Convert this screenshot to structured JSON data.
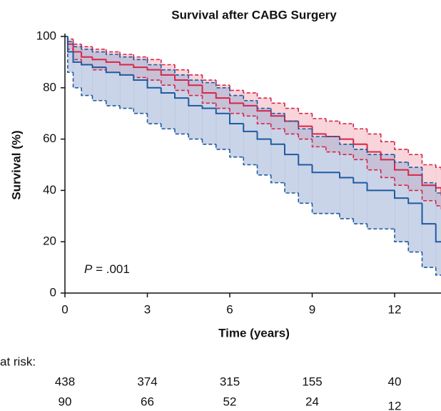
{
  "chart_data": {
    "type": "survival",
    "title": "Survival after CABG Surgery",
    "ylabel": "Survival (%)",
    "xlabel": "Time (years)",
    "annotation": {
      "italic": "P",
      "text": " = .001"
    },
    "xlim": [
      0,
      13.7
    ],
    "ylim": [
      0,
      100
    ],
    "xticks": [
      0,
      3,
      6,
      9,
      12
    ],
    "yticks": [
      0,
      20,
      40,
      60,
      80,
      100
    ],
    "series": [
      {
        "color": "#d6264a",
        "band_color": "#f2b3bc",
        "x": [
          0,
          0.1,
          0.3,
          0.6,
          1,
          1.5,
          2,
          2.5,
          3,
          3.5,
          4,
          4.5,
          5,
          5.5,
          6,
          6.5,
          7,
          7.5,
          8,
          8.5,
          9,
          9.5,
          10,
          10.5,
          11,
          11.5,
          12,
          12.5,
          13,
          13.5,
          13.7
        ],
        "values": [
          100,
          97,
          94,
          92,
          91,
          90,
          89,
          88,
          87,
          85,
          83,
          81,
          78,
          76,
          74,
          73,
          71,
          69,
          67,
          65,
          62,
          61,
          60,
          58,
          55,
          52,
          48,
          46,
          42,
          41,
          38
        ],
        "upper": [
          100,
          99,
          97,
          96,
          95,
          94,
          93,
          92,
          91,
          89,
          87,
          85,
          83,
          81,
          79,
          78,
          76,
          74,
          72,
          70,
          68,
          67,
          66,
          64,
          62,
          59,
          56,
          54,
          50,
          49,
          48
        ],
        "lower": [
          100,
          95,
          91,
          89,
          87,
          86,
          85,
          84,
          83,
          81,
          79,
          77,
          74,
          72,
          70,
          69,
          66,
          64,
          62,
          60,
          57,
          55,
          54,
          52,
          48,
          45,
          42,
          40,
          36,
          34,
          32
        ]
      },
      {
        "color": "#1f5aa0",
        "band_color": "#9fb0d6",
        "x": [
          0,
          0.1,
          0.3,
          0.6,
          1,
          1.5,
          2,
          2.5,
          3,
          3.5,
          4,
          4.5,
          5,
          5.5,
          6,
          6.5,
          7,
          7.5,
          8,
          8.5,
          9,
          10,
          10.5,
          11,
          12,
          12.5,
          13,
          13.5,
          13.7
        ],
        "values": [
          100,
          94,
          90,
          89,
          88,
          86,
          85,
          83,
          80,
          78,
          76,
          73,
          72,
          70,
          66,
          63,
          60,
          58,
          54,
          50,
          47,
          45,
          43,
          40,
          37,
          35,
          27,
          20,
          20
        ],
        "upper": [
          100,
          98,
          96,
          95,
          94,
          93,
          92,
          91,
          89,
          87,
          85,
          83,
          82,
          80,
          77,
          75,
          72,
          70,
          67,
          64,
          61,
          58,
          56,
          54,
          51,
          49,
          43,
          39,
          39
        ],
        "lower": [
          100,
          86,
          80,
          77,
          75,
          73,
          72,
          70,
          66,
          64,
          62,
          60,
          58,
          56,
          53,
          50,
          46,
          43,
          39,
          35,
          31,
          29,
          27,
          25,
          20,
          16,
          10,
          7,
          7
        ]
      }
    ],
    "number_at_risk": {
      "label": "at risk:",
      "rows": [
        [
          "438",
          "374",
          "315",
          "155",
          "40"
        ],
        [
          "90",
          "66",
          "52",
          "24",
          "12"
        ]
      ]
    }
  }
}
